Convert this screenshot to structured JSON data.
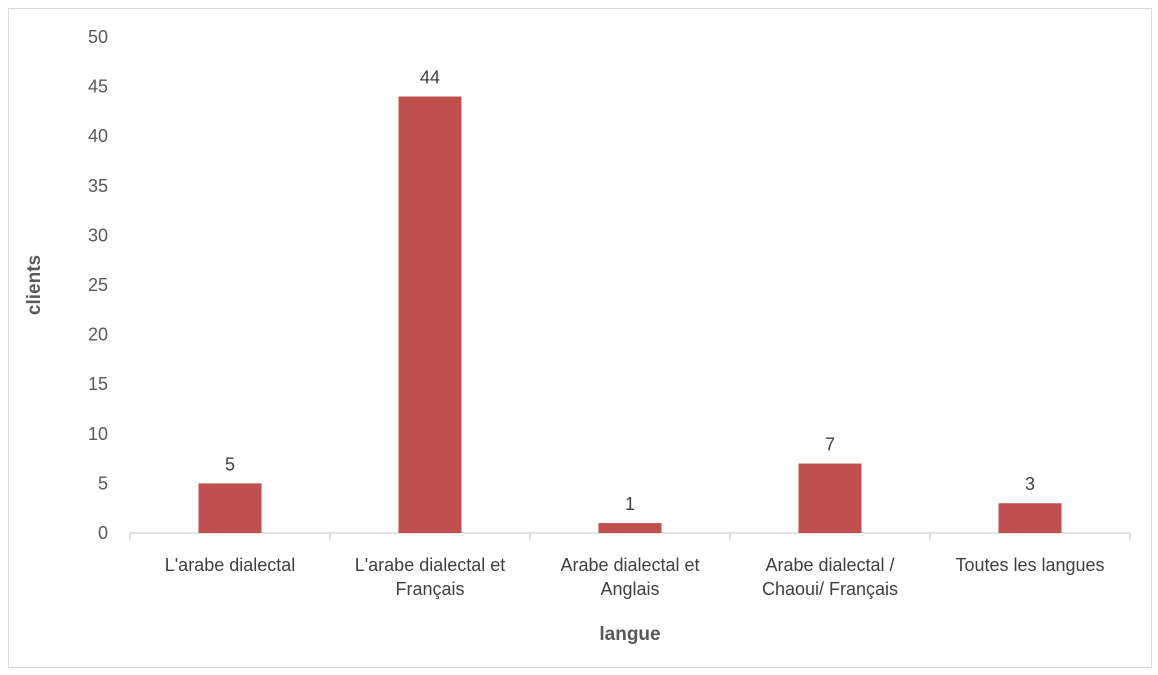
{
  "chart_data": {
    "type": "bar",
    "categories": [
      [
        "L'arabe dialectal"
      ],
      [
        "L'arabe dialectal et",
        "Français"
      ],
      [
        "Arabe dialectal et",
        "Anglais"
      ],
      [
        "Arabe dialectal /",
        "Chaoui/ Français"
      ],
      [
        "Toutes les langues"
      ]
    ],
    "values": [
      5,
      44,
      1,
      7,
      3
    ],
    "data_labels": [
      "5",
      "44",
      "1",
      "7",
      "3"
    ],
    "xlabel": "langue",
    "ylabel": "clients",
    "ylim": [
      0,
      50
    ],
    "yticks": [
      "0",
      "5",
      "10",
      "15",
      "20",
      "25",
      "30",
      "35",
      "40",
      "45",
      "50"
    ],
    "bar_color": "#c0504d",
    "grid": false,
    "legend": "none"
  }
}
